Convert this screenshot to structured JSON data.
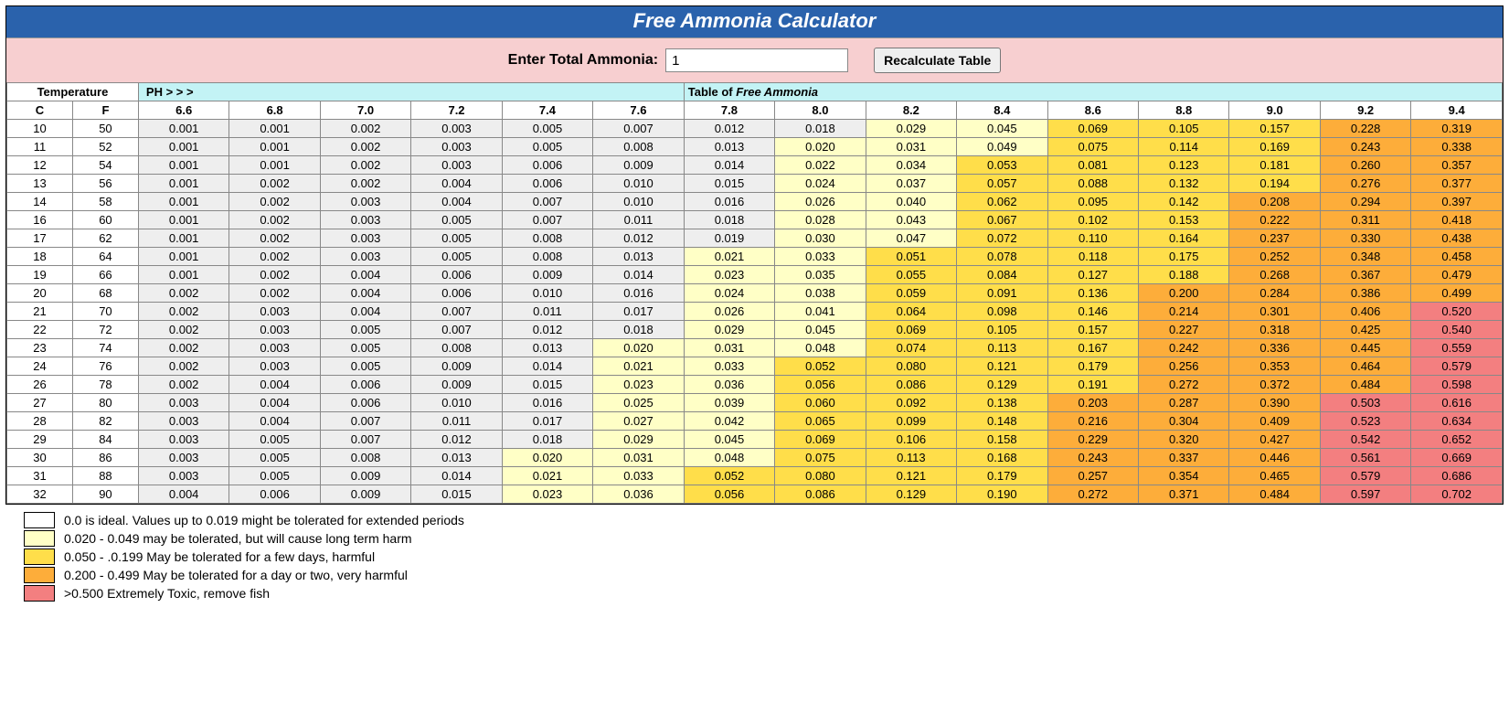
{
  "title": "Free Ammonia Calculator",
  "input": {
    "label": "Enter Total Ammonia:",
    "value": "1",
    "button": "Recalculate Table"
  },
  "header": {
    "temperature": "Temperature",
    "ph": "PH > > >",
    "table_of": "Table of ",
    "free_ammonia": "Free Ammonia",
    "c": "C",
    "f": "F"
  },
  "colors": {
    "title_bg": "#2a62ac",
    "input_bg": "#f7cfd0",
    "header_bg": "#c3f3f5",
    "band1": "#eeeeee",
    "band2": "#ffffc6",
    "band3": "#ffde4a",
    "band4": "#fdad3a",
    "band5": "#f37f80",
    "border": "#888888"
  },
  "thresholds": {
    "b1_max": 0.019,
    "b2_max": 0.049,
    "b3_max": 0.199,
    "b4_max": 0.499
  },
  "ph_values": [
    "6.6",
    "6.8",
    "7.0",
    "7.2",
    "7.4",
    "7.6",
    "7.8",
    "8.0",
    "8.2",
    "8.4",
    "8.6",
    "8.8",
    "9.0",
    "9.2",
    "9.4"
  ],
  "rows": [
    {
      "c": "10",
      "f": "50",
      "v": [
        "0.001",
        "0.001",
        "0.002",
        "0.003",
        "0.005",
        "0.007",
        "0.012",
        "0.018",
        "0.029",
        "0.045",
        "0.069",
        "0.105",
        "0.157",
        "0.228",
        "0.319"
      ]
    },
    {
      "c": "11",
      "f": "52",
      "v": [
        "0.001",
        "0.001",
        "0.002",
        "0.003",
        "0.005",
        "0.008",
        "0.013",
        "0.020",
        "0.031",
        "0.049",
        "0.075",
        "0.114",
        "0.169",
        "0.243",
        "0.338"
      ]
    },
    {
      "c": "12",
      "f": "54",
      "v": [
        "0.001",
        "0.001",
        "0.002",
        "0.003",
        "0.006",
        "0.009",
        "0.014",
        "0.022",
        "0.034",
        "0.053",
        "0.081",
        "0.123",
        "0.181",
        "0.260",
        "0.357"
      ]
    },
    {
      "c": "13",
      "f": "56",
      "v": [
        "0.001",
        "0.002",
        "0.002",
        "0.004",
        "0.006",
        "0.010",
        "0.015",
        "0.024",
        "0.037",
        "0.057",
        "0.088",
        "0.132",
        "0.194",
        "0.276",
        "0.377"
      ]
    },
    {
      "c": "14",
      "f": "58",
      "v": [
        "0.001",
        "0.002",
        "0.003",
        "0.004",
        "0.007",
        "0.010",
        "0.016",
        "0.026",
        "0.040",
        "0.062",
        "0.095",
        "0.142",
        "0.208",
        "0.294",
        "0.397"
      ]
    },
    {
      "c": "16",
      "f": "60",
      "v": [
        "0.001",
        "0.002",
        "0.003",
        "0.005",
        "0.007",
        "0.011",
        "0.018",
        "0.028",
        "0.043",
        "0.067",
        "0.102",
        "0.153",
        "0.222",
        "0.311",
        "0.418"
      ]
    },
    {
      "c": "17",
      "f": "62",
      "v": [
        "0.001",
        "0.002",
        "0.003",
        "0.005",
        "0.008",
        "0.012",
        "0.019",
        "0.030",
        "0.047",
        "0.072",
        "0.110",
        "0.164",
        "0.237",
        "0.330",
        "0.438"
      ]
    },
    {
      "c": "18",
      "f": "64",
      "v": [
        "0.001",
        "0.002",
        "0.003",
        "0.005",
        "0.008",
        "0.013",
        "0.021",
        "0.033",
        "0.051",
        "0.078",
        "0.118",
        "0.175",
        "0.252",
        "0.348",
        "0.458"
      ]
    },
    {
      "c": "19",
      "f": "66",
      "v": [
        "0.001",
        "0.002",
        "0.004",
        "0.006",
        "0.009",
        "0.014",
        "0.023",
        "0.035",
        "0.055",
        "0.084",
        "0.127",
        "0.188",
        "0.268",
        "0.367",
        "0.479"
      ]
    },
    {
      "c": "20",
      "f": "68",
      "v": [
        "0.002",
        "0.002",
        "0.004",
        "0.006",
        "0.010",
        "0.016",
        "0.024",
        "0.038",
        "0.059",
        "0.091",
        "0.136",
        "0.200",
        "0.284",
        "0.386",
        "0.499"
      ]
    },
    {
      "c": "21",
      "f": "70",
      "v": [
        "0.002",
        "0.003",
        "0.004",
        "0.007",
        "0.011",
        "0.017",
        "0.026",
        "0.041",
        "0.064",
        "0.098",
        "0.146",
        "0.214",
        "0.301",
        "0.406",
        "0.520"
      ]
    },
    {
      "c": "22",
      "f": "72",
      "v": [
        "0.002",
        "0.003",
        "0.005",
        "0.007",
        "0.012",
        "0.018",
        "0.029",
        "0.045",
        "0.069",
        "0.105",
        "0.157",
        "0.227",
        "0.318",
        "0.425",
        "0.540"
      ]
    },
    {
      "c": "23",
      "f": "74",
      "v": [
        "0.002",
        "0.003",
        "0.005",
        "0.008",
        "0.013",
        "0.020",
        "0.031",
        "0.048",
        "0.074",
        "0.113",
        "0.167",
        "0.242",
        "0.336",
        "0.445",
        "0.559"
      ]
    },
    {
      "c": "24",
      "f": "76",
      "v": [
        "0.002",
        "0.003",
        "0.005",
        "0.009",
        "0.014",
        "0.021",
        "0.033",
        "0.052",
        "0.080",
        "0.121",
        "0.179",
        "0.256",
        "0.353",
        "0.464",
        "0.579"
      ]
    },
    {
      "c": "26",
      "f": "78",
      "v": [
        "0.002",
        "0.004",
        "0.006",
        "0.009",
        "0.015",
        "0.023",
        "0.036",
        "0.056",
        "0.086",
        "0.129",
        "0.191",
        "0.272",
        "0.372",
        "0.484",
        "0.598"
      ]
    },
    {
      "c": "27",
      "f": "80",
      "v": [
        "0.003",
        "0.004",
        "0.006",
        "0.010",
        "0.016",
        "0.025",
        "0.039",
        "0.060",
        "0.092",
        "0.138",
        "0.203",
        "0.287",
        "0.390",
        "0.503",
        "0.616"
      ]
    },
    {
      "c": "28",
      "f": "82",
      "v": [
        "0.003",
        "0.004",
        "0.007",
        "0.011",
        "0.017",
        "0.027",
        "0.042",
        "0.065",
        "0.099",
        "0.148",
        "0.216",
        "0.304",
        "0.409",
        "0.523",
        "0.634"
      ]
    },
    {
      "c": "29",
      "f": "84",
      "v": [
        "0.003",
        "0.005",
        "0.007",
        "0.012",
        "0.018",
        "0.029",
        "0.045",
        "0.069",
        "0.106",
        "0.158",
        "0.229",
        "0.320",
        "0.427",
        "0.542",
        "0.652"
      ]
    },
    {
      "c": "30",
      "f": "86",
      "v": [
        "0.003",
        "0.005",
        "0.008",
        "0.013",
        "0.020",
        "0.031",
        "0.048",
        "0.075",
        "0.113",
        "0.168",
        "0.243",
        "0.337",
        "0.446",
        "0.561",
        "0.669"
      ]
    },
    {
      "c": "31",
      "f": "88",
      "v": [
        "0.003",
        "0.005",
        "0.009",
        "0.014",
        "0.021",
        "0.033",
        "0.052",
        "0.080",
        "0.121",
        "0.179",
        "0.257",
        "0.354",
        "0.465",
        "0.579",
        "0.686"
      ]
    },
    {
      "c": "32",
      "f": "90",
      "v": [
        "0.004",
        "0.006",
        "0.009",
        "0.015",
        "0.023",
        "0.036",
        "0.056",
        "0.086",
        "0.129",
        "0.190",
        "0.272",
        "0.371",
        "0.484",
        "0.597",
        "0.702"
      ]
    }
  ],
  "legend": [
    {
      "band": "band1",
      "text": "0.0 is ideal. Values up to 0.019 might be tolerated for extended periods"
    },
    {
      "band": "band2",
      "text": "0.020 - 0.049 may be tolerated, but will cause long term harm"
    },
    {
      "band": "band3",
      "text": "0.050 - .0.199 May be tolerated for a few days, harmful"
    },
    {
      "band": "band4",
      "text": "0.200 - 0.499 May be tolerated for a day or two, very harmful"
    },
    {
      "band": "band5",
      "text": ">0.500 Extremely Toxic, remove fish"
    }
  ],
  "col_widths": {
    "temp": 68,
    "data": 94
  }
}
